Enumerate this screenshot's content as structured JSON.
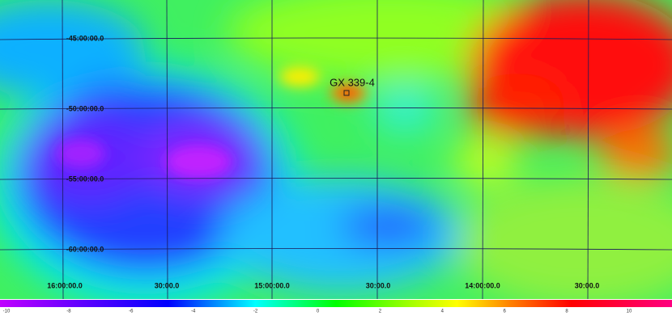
{
  "map": {
    "source": {
      "label": "GX 339-4"
    },
    "dec_labels": [
      "-45:00:00.0",
      "-50:00:00.0",
      "-55:00:00.0",
      "-60:00:00.0"
    ],
    "ra_labels": [
      "16:00:00.0",
      "30:00.0",
      "15:00:00.0",
      "30:00.0",
      "14:00:00.0",
      "30:00.0"
    ],
    "colorbar": {
      "ticks": [
        "-10",
        "-8",
        "-6",
        "-4",
        "-2",
        "0",
        "2",
        "4",
        "6",
        "8",
        "10"
      ]
    }
  }
}
